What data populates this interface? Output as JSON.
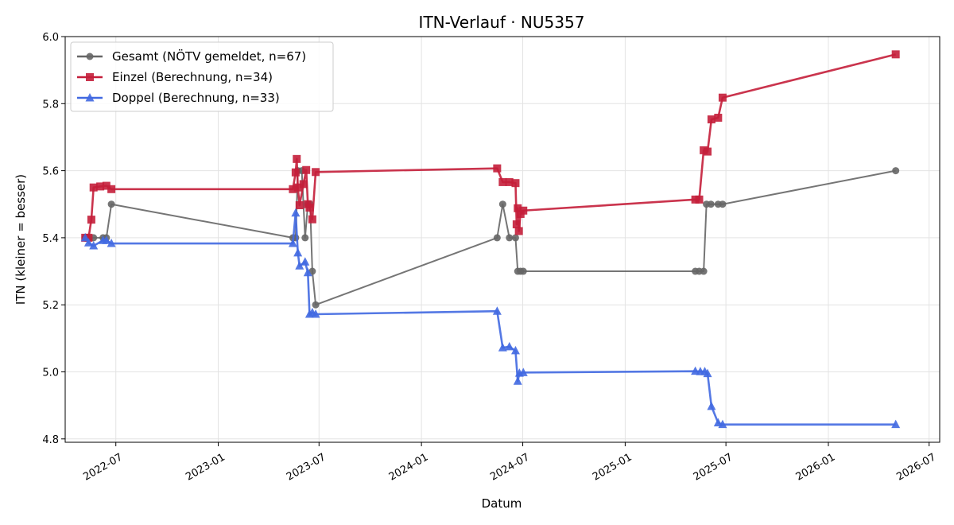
{
  "chart_data": {
    "type": "line",
    "title": "ITN-Verlauf · NU5357",
    "xlabel": "Datum",
    "ylabel": "ITN  (kleiner = besser)",
    "x_type": "date",
    "xlim": [
      "2022-04-01",
      "2026-07-20"
    ],
    "ylim": [
      4.79,
      6.0
    ],
    "yticks": [
      4.8,
      5.0,
      5.2,
      5.4,
      5.6,
      5.8,
      6.0
    ],
    "ytick_labels": [
      "4.8",
      "5.0",
      "5.2",
      "5.4",
      "5.6",
      "5.8",
      "6.0"
    ],
    "xticks": [
      "2022-07-01",
      "2023-01-01",
      "2023-07-01",
      "2024-01-01",
      "2024-07-01",
      "2025-01-01",
      "2025-07-01",
      "2026-01-01",
      "2026-07-01"
    ],
    "xtick_labels": [
      "2022-07",
      "2023-01",
      "2023-07",
      "2024-01",
      "2024-07",
      "2025-01",
      "2025-07",
      "2026-01",
      "2026-07"
    ],
    "grid": true,
    "legend_position": "top-left",
    "series": [
      {
        "name": "Gesamt (NÖTV gemeldet, n=67)",
        "color": "#666666",
        "marker": "circle",
        "points": [
          [
            "2022-05-07",
            5.4
          ],
          [
            "2022-05-13",
            5.4
          ],
          [
            "2022-05-22",
            5.4
          ],
          [
            "2022-06-08",
            5.4
          ],
          [
            "2022-06-14",
            5.4
          ],
          [
            "2022-06-23",
            5.5
          ],
          [
            "2023-05-15",
            5.4
          ],
          [
            "2023-05-20",
            5.4
          ],
          [
            "2023-05-24",
            5.6
          ],
          [
            "2023-05-31",
            5.6
          ],
          [
            "2023-06-06",
            5.4
          ],
          [
            "2023-06-11",
            5.5
          ],
          [
            "2023-06-15",
            5.5
          ],
          [
            "2023-06-19",
            5.3
          ],
          [
            "2023-06-25",
            5.2
          ],
          [
            "2024-05-16",
            5.4
          ],
          [
            "2024-05-26",
            5.5
          ],
          [
            "2024-06-07",
            5.4
          ],
          [
            "2024-06-18",
            5.4
          ],
          [
            "2024-06-22",
            5.3
          ],
          [
            "2024-06-27",
            5.3
          ],
          [
            "2024-07-02",
            5.3
          ],
          [
            "2025-05-07",
            5.3
          ],
          [
            "2025-05-14",
            5.3
          ],
          [
            "2025-05-22",
            5.3
          ],
          [
            "2025-05-27",
            5.5
          ],
          [
            "2025-06-04",
            5.5
          ],
          [
            "2025-06-17",
            5.5
          ],
          [
            "2025-06-25",
            5.5
          ],
          [
            "2026-05-02",
            5.6
          ]
        ]
      },
      {
        "name": "Einzel (Berechnung, n=34)",
        "color": "#c41e3a",
        "marker": "square",
        "points": [
          [
            "2022-05-07",
            5.4
          ],
          [
            "2022-05-13",
            5.4
          ],
          [
            "2022-05-18",
            5.454
          ],
          [
            "2022-05-22",
            5.55
          ],
          [
            "2022-06-03",
            5.553
          ],
          [
            "2022-06-14",
            5.555
          ],
          [
            "2022-06-23",
            5.545
          ],
          [
            "2023-05-15",
            5.545
          ],
          [
            "2023-05-20",
            5.595
          ],
          [
            "2023-05-22",
            5.635
          ],
          [
            "2023-05-24",
            5.55
          ],
          [
            "2023-05-27",
            5.497
          ],
          [
            "2023-06-03",
            5.56
          ],
          [
            "2023-06-08",
            5.602
          ],
          [
            "2023-06-11",
            5.5
          ],
          [
            "2023-06-14",
            5.49
          ],
          [
            "2023-06-19",
            5.455
          ],
          [
            "2023-06-25",
            5.596
          ],
          [
            "2024-05-16",
            5.607
          ],
          [
            "2024-05-26",
            5.566
          ],
          [
            "2024-06-07",
            5.566
          ],
          [
            "2024-06-18",
            5.563
          ],
          [
            "2024-06-20",
            5.44
          ],
          [
            "2024-06-22",
            5.488
          ],
          [
            "2024-06-24",
            5.42
          ],
          [
            "2024-06-27",
            5.471
          ],
          [
            "2024-07-02",
            5.481
          ],
          [
            "2025-05-07",
            5.514
          ],
          [
            "2025-05-14",
            5.514
          ],
          [
            "2025-05-22",
            5.661
          ],
          [
            "2025-05-29",
            5.657
          ],
          [
            "2025-06-05",
            5.753
          ],
          [
            "2025-06-17",
            5.758
          ],
          [
            "2025-06-25",
            5.818
          ],
          [
            "2026-05-02",
            5.947
          ]
        ]
      },
      {
        "name": "Doppel (Berechnung, n=33)",
        "color": "#4169e1",
        "marker": "triangle",
        "points": [
          [
            "2022-05-07",
            5.4
          ],
          [
            "2022-05-13",
            5.385
          ],
          [
            "2022-05-22",
            5.376
          ],
          [
            "2022-06-08",
            5.392
          ],
          [
            "2022-06-14",
            5.392
          ],
          [
            "2022-06-23",
            5.383
          ],
          [
            "2023-05-15",
            5.383
          ],
          [
            "2023-05-20",
            5.474
          ],
          [
            "2023-05-24",
            5.355
          ],
          [
            "2023-05-27",
            5.316
          ],
          [
            "2023-06-06",
            5.328
          ],
          [
            "2023-06-11",
            5.296
          ],
          [
            "2023-06-14",
            5.172
          ],
          [
            "2023-06-19",
            5.177
          ],
          [
            "2023-06-25",
            5.172
          ],
          [
            "2024-05-16",
            5.181
          ],
          [
            "2024-05-26",
            5.072
          ],
          [
            "2024-06-07",
            5.075
          ],
          [
            "2024-06-18",
            5.063
          ],
          [
            "2024-06-22",
            4.972
          ],
          [
            "2024-06-25",
            4.996
          ],
          [
            "2024-07-02",
            4.998
          ],
          [
            "2025-05-07",
            5.002
          ],
          [
            "2025-05-16",
            5.001
          ],
          [
            "2025-05-24",
            5.001
          ],
          [
            "2025-05-29",
            4.995
          ],
          [
            "2025-06-05",
            4.897
          ],
          [
            "2025-06-17",
            4.848
          ],
          [
            "2025-06-25",
            4.843
          ],
          [
            "2026-05-02",
            4.843
          ]
        ]
      }
    ]
  }
}
